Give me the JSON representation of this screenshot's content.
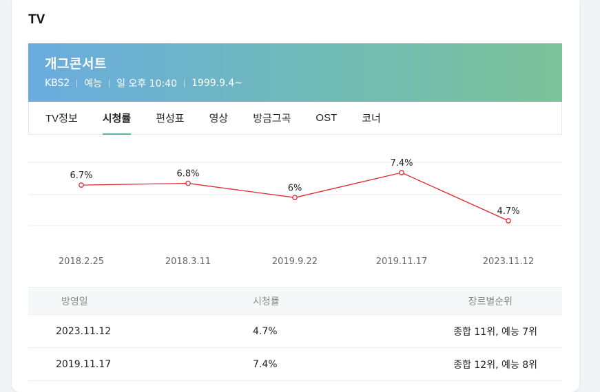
{
  "section_title": "TV",
  "program": {
    "title": "개그콘서트",
    "channel": "KBS2",
    "genre": "예능",
    "schedule": "일 오후 10:40",
    "start_date": "1999.9.4~"
  },
  "tabs": [
    {
      "label": "TV정보",
      "active": false
    },
    {
      "label": "시청률",
      "active": true
    },
    {
      "label": "편성표",
      "active": false
    },
    {
      "label": "영상",
      "active": false
    },
    {
      "label": "방금그곡",
      "active": false
    },
    {
      "label": "OST",
      "active": false
    },
    {
      "label": "코너",
      "active": false
    }
  ],
  "chart_data": {
    "type": "line",
    "categories": [
      "2018.2.25",
      "2018.3.11",
      "2019.9.22",
      "2019.11.17",
      "2023.11.12"
    ],
    "values": [
      6.7,
      6.8,
      6,
      7.4,
      4.7
    ],
    "labels": [
      "6.7%",
      "6.8%",
      "6%",
      "7.4%",
      "4.7%"
    ],
    "color": "#e0262b",
    "grid": true
  },
  "table": {
    "headers": [
      "방영일",
      "시청률",
      "장르별순위"
    ],
    "rows": [
      {
        "date": "2023.11.12",
        "rating": "4.7%",
        "rank": "종합 11위, 예능 7위"
      },
      {
        "date": "2019.11.17",
        "rating": "7.4%",
        "rank": "종합 12위, 예능 8위"
      }
    ]
  }
}
